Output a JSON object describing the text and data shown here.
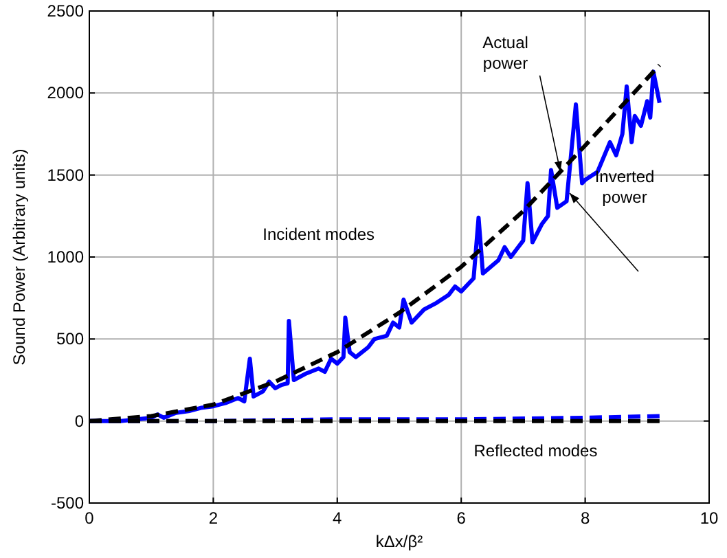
{
  "chart_data": {
    "type": "line",
    "xlabel": "kΔx/β²",
    "ylabel": "Sound Power (Arbitrary units)",
    "xlim": [
      0,
      10
    ],
    "ylim": [
      -500,
      2500
    ],
    "xticks": [
      0,
      2,
      4,
      6,
      8,
      10
    ],
    "yticks": [
      -500,
      0,
      500,
      1000,
      1500,
      2000,
      2500
    ],
    "grid": true,
    "series": [
      {
        "color": "#0000ff",
        "line_style": "solid",
        "x": [
          0,
          0.5,
          1,
          1.1,
          1.2,
          1.4,
          1.6,
          1.8,
          2,
          2.2,
          2.4,
          2.5,
          2.59,
          2.65,
          2.8,
          2.9,
          3.0,
          3.1,
          3.2,
          3.22,
          3.3,
          3.5,
          3.7,
          3.8,
          3.9,
          4.0,
          4.1,
          4.13,
          4.2,
          4.3,
          4.5,
          4.6,
          4.8,
          4.9,
          5.0,
          5.07,
          5.2,
          5.4,
          5.6,
          5.8,
          5.9,
          6.0,
          6.2,
          6.28,
          6.35,
          6.6,
          6.7,
          6.8,
          6.9,
          7.0,
          7.07,
          7.15,
          7.3,
          7.4,
          7.45,
          7.55,
          7.7,
          7.85,
          7.95,
          8.0,
          8.2,
          8.4,
          8.5,
          8.6,
          8.67,
          8.75,
          8.8,
          8.9,
          9.0,
          9.05,
          9.1,
          9.2
        ],
        "values": [
          0,
          0,
          20,
          40,
          20,
          50,
          60,
          80,
          90,
          110,
          140,
          120,
          380,
          150,
          180,
          240,
          200,
          220,
          230,
          610,
          250,
          290,
          320,
          300,
          380,
          350,
          390,
          630,
          420,
          390,
          450,
          500,
          520,
          600,
          570,
          740,
          600,
          680,
          720,
          770,
          820,
          790,
          870,
          1240,
          900,
          980,
          1060,
          1000,
          1050,
          1100,
          1450,
          1090,
          1200,
          1250,
          1530,
          1300,
          1340,
          1930,
          1450,
          1470,
          1520,
          1700,
          1620,
          1750,
          2040,
          1700,
          1860,
          1800,
          1950,
          1850,
          2130,
          1940
        ]
      },
      {
        "color": "#000000",
        "line_style": "dashed",
        "x": [
          0,
          1,
          2,
          3,
          4,
          5,
          6,
          7,
          8,
          9.2
        ],
        "values": [
          0,
          30,
          100,
          240,
          420,
          660,
          940,
          1280,
          1680,
          2170
        ]
      },
      {
        "color": "#0000ff",
        "line_style": "dashed",
        "x": [
          0,
          2,
          4,
          6,
          8,
          9.2
        ],
        "values": [
          0,
          0,
          10,
          10,
          20,
          30
        ]
      },
      {
        "color": "#000000",
        "line_style": "dashed",
        "x": [
          0,
          2,
          4,
          6,
          8,
          9.2
        ],
        "values": [
          0,
          0,
          0,
          0,
          0,
          0
        ]
      }
    ],
    "annotations": [
      {
        "text": "Actual power",
        "x": 7.6,
        "y": 1520
      },
      {
        "text": "Inverted power",
        "x": 7.75,
        "y": 1390
      },
      "Incident modes",
      "Reflected modes"
    ]
  }
}
